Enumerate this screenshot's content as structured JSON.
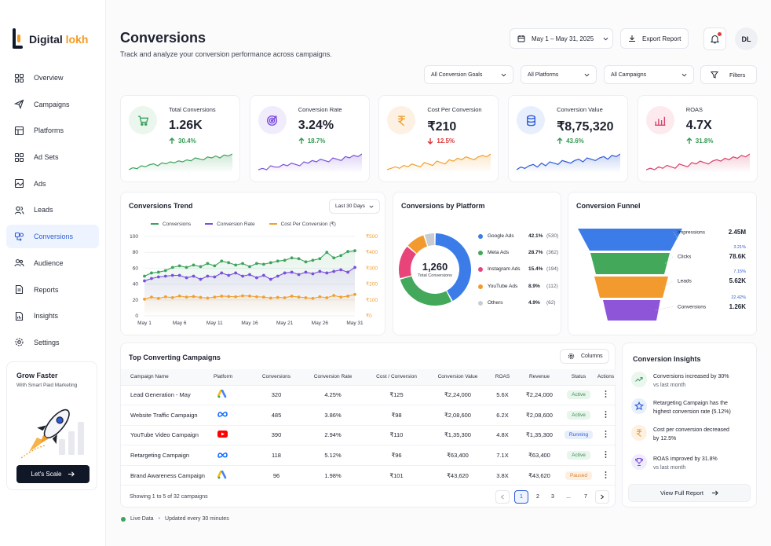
{
  "brand": {
    "name_main": "Digital ",
    "name_accent": "lokh"
  },
  "nav": [
    {
      "label": "Overview",
      "icon": "grid-icon"
    },
    {
      "label": "Campaigns",
      "icon": "send-icon"
    },
    {
      "label": "Platforms",
      "icon": "layout-icon"
    },
    {
      "label": "Ad Sets",
      "icon": "apps-icon"
    },
    {
      "label": "Ads",
      "icon": "image-icon"
    },
    {
      "label": "Leads",
      "icon": "users-icon"
    },
    {
      "label": "Conversions",
      "icon": "conversion-icon"
    },
    {
      "label": "Audience",
      "icon": "audience-icon"
    },
    {
      "label": "Reports",
      "icon": "file-icon"
    },
    {
      "label": "Insights",
      "icon": "insight-file-icon"
    },
    {
      "label": "Settings",
      "icon": "gear-icon"
    }
  ],
  "promo": {
    "title": "Grow Faster",
    "subtitle": "With Smart Paid Marketing",
    "button": "Let's Scale"
  },
  "header": {
    "title": "Conversions",
    "subtitle": "Track and analyze your conversion performance across campaigns.",
    "date_range": "May 1 – May 31, 2025",
    "export": "Export Report",
    "avatar": "DL"
  },
  "filters": {
    "goals": "All Conversion Goals",
    "platforms": "All Platforms",
    "campaigns": "All Campaigns",
    "button": "Filters"
  },
  "kpis": [
    {
      "label": "Total Conversions",
      "value": "1.26K",
      "change": "30.4%",
      "dir": "up",
      "color": "#3da35d",
      "bg": "#eaf6ee",
      "icon": "cart-icon",
      "spark": [
        10,
        12,
        11,
        14,
        13,
        15,
        16,
        14,
        17,
        16,
        18,
        17,
        19,
        18,
        20,
        19,
        22,
        21,
        20,
        23,
        22,
        24,
        22,
        25,
        24,
        26
      ]
    },
    {
      "label": "Conversion Rate",
      "value": "3.24%",
      "change": "18.7%",
      "dir": "up",
      "color": "#7a4fdc",
      "bg": "#f1ecfc",
      "icon": "target-icon",
      "spark": [
        10,
        11,
        10,
        13,
        12,
        12,
        14,
        13,
        15,
        14,
        13,
        16,
        15,
        17,
        16,
        18,
        17,
        16,
        19,
        18,
        17,
        20,
        19,
        21,
        20,
        22
      ]
    },
    {
      "label": "Cost Per Conversion",
      "value": "₹210",
      "change": "12.5%",
      "dir": "down",
      "color": "#f0a030",
      "bg": "#fdf1e3",
      "icon": "rupee-icon",
      "spark": [
        10,
        11,
        12,
        11,
        13,
        12,
        14,
        13,
        12,
        15,
        14,
        13,
        16,
        15,
        14,
        17,
        16,
        18,
        17,
        19,
        18,
        17,
        19,
        20,
        19,
        21
      ]
    },
    {
      "label": "Conversion Value",
      "value": "₹8,75,320",
      "change": "43.6%",
      "dir": "up",
      "color": "#2d5bd7",
      "bg": "#e8effc",
      "icon": "coins-icon",
      "spark": [
        10,
        12,
        11,
        13,
        14,
        12,
        15,
        13,
        16,
        15,
        14,
        17,
        16,
        15,
        17,
        18,
        16,
        19,
        18,
        17,
        19,
        20,
        18,
        21,
        20,
        22
      ]
    },
    {
      "label": "ROAS",
      "value": "4.7X",
      "change": "31.8%",
      "dir": "up",
      "color": "#d93f6a",
      "bg": "#fceaef",
      "icon": "bar-chart-icon",
      "spark": [
        10,
        11,
        10,
        12,
        11,
        13,
        12,
        11,
        14,
        13,
        12,
        15,
        14,
        16,
        15,
        14,
        16,
        17,
        16,
        18,
        17,
        19,
        18,
        20,
        19,
        21
      ]
    }
  ],
  "trend": {
    "title": "Conversions Trend",
    "range": "Last 30 Days",
    "legend": [
      "Conversions",
      "Conversion Rate",
      "Cost Per Conversion (₹)"
    ]
  },
  "chart_data": [
    {
      "type": "line",
      "x": [
        "May 1",
        "May 2",
        "May 3",
        "May 4",
        "May 5",
        "May 6",
        "May 7",
        "May 8",
        "May 9",
        "May 10",
        "May 11",
        "May 12",
        "May 13",
        "May 14",
        "May 15",
        "May 16",
        "May 17",
        "May 18",
        "May 19",
        "May 20",
        "May 21",
        "May 22",
        "May 23",
        "May 24",
        "May 25",
        "May 26",
        "May 27",
        "May 28",
        "May 29",
        "May 30",
        "May 31"
      ],
      "x_ticks": [
        "May 1",
        "May 6",
        "May 11",
        "May 16",
        "May 21",
        "May 26",
        "May 31"
      ],
      "y_left_ticks": [
        "0",
        "20",
        "40",
        "60",
        "80",
        "100"
      ],
      "y_right_ticks": [
        "₹0",
        "₹100",
        "₹200",
        "₹300",
        "₹400",
        "₹500"
      ],
      "ylim": [
        0,
        100
      ],
      "y2lim": [
        0,
        500
      ],
      "series": [
        {
          "name": "Conversions",
          "color": "#3da35d",
          "axis": "left",
          "values": [
            50,
            54,
            55,
            57,
            61,
            63,
            61,
            64,
            62,
            66,
            63,
            69,
            67,
            64,
            66,
            62,
            66,
            65,
            67,
            69,
            70,
            73,
            72,
            68,
            70,
            72,
            80,
            73,
            76,
            81,
            82
          ]
        },
        {
          "name": "Conversion Rate",
          "color": "#7a4fdc",
          "axis": "left",
          "values": [
            44,
            47,
            49,
            50,
            51,
            51,
            48,
            50,
            46,
            50,
            49,
            54,
            51,
            54,
            50,
            52,
            48,
            51,
            46,
            50,
            54,
            55,
            52,
            55,
            53,
            56,
            54,
            56,
            58,
            55,
            61
          ]
        },
        {
          "name": "Cost Per Conversion (₹)",
          "color": "#f0a030",
          "axis": "right",
          "values": [
            105,
            118,
            110,
            120,
            115,
            125,
            118,
            122,
            116,
            112,
            118,
            124,
            122,
            120,
            126,
            125,
            120,
            118,
            112,
            116,
            114,
            124,
            118,
            114,
            110,
            120,
            114,
            128,
            118,
            124,
            135
          ]
        }
      ]
    },
    {
      "type": "pie",
      "title": "Conversions by Platform",
      "center_value": "1,260",
      "center_label": "Total Conversions",
      "slices": [
        {
          "name": "Google Ads",
          "pct": "42.1%",
          "count": "(530)",
          "value": 42.1,
          "color": "#3b7ce8"
        },
        {
          "name": "Meta Ads",
          "pct": "28.7%",
          "count": "(362)",
          "value": 28.7,
          "color": "#43a85a"
        },
        {
          "name": "Instagram Ads",
          "pct": "15.4%",
          "count": "(194)",
          "value": 15.4,
          "color": "#e8447a"
        },
        {
          "name": "YouTube Ads",
          "pct": "8.9%",
          "count": "(112)",
          "value": 8.9,
          "color": "#f29a2e"
        },
        {
          "name": "Others",
          "pct": "4.9%",
          "count": "(62)",
          "value": 4.9,
          "color": "#c8ccd3"
        }
      ]
    }
  ],
  "funnel": {
    "title": "Conversion Funnel",
    "stages": [
      {
        "label": "Impressions",
        "value": "2.45M",
        "color": "#3b7ce8"
      },
      {
        "label": "Clicks",
        "value": "78.6K",
        "rate": "3.21%",
        "color": "#43a85a"
      },
      {
        "label": "Leads",
        "value": "5.62K",
        "rate": "7.15%",
        "color": "#f29a2e"
      },
      {
        "label": "Conversions",
        "value": "1.26K",
        "rate": "22.42%",
        "color": "#8e55d9"
      }
    ]
  },
  "campaigns": {
    "title": "Top Converting Campaigns",
    "columns_btn": "Columns",
    "headers": [
      "Campaign Name",
      "Platform",
      "Conversions",
      "Conversion Rate",
      "Cost / Conversion",
      "Conversion Value",
      "ROAS",
      "Revenue",
      "Status",
      "Actions"
    ],
    "rows": [
      {
        "name": "Lead Generation - May",
        "platform": "google-ads-icon",
        "conversions": "320",
        "rate": "4.25%",
        "cost": "₹125",
        "value": "₹2,24,000",
        "roas": "5.6X",
        "revenue": "₹2,24,000",
        "status": "Active",
        "status_color": "#3a8f52",
        "status_bg": "#e8f5ec"
      },
      {
        "name": "Website Traffic Campaign",
        "platform": "meta-icon",
        "conversions": "485",
        "rate": "3.86%",
        "cost": "₹98",
        "value": "₹2,08,600",
        "roas": "6.2X",
        "revenue": "₹2,08,600",
        "status": "Active",
        "status_color": "#3a8f52",
        "status_bg": "#e8f5ec"
      },
      {
        "name": "YouTube Video Campaign",
        "platform": "youtube-icon",
        "conversions": "390",
        "rate": "2.94%",
        "cost": "₹110",
        "value": "₹1,35,300",
        "roas": "4.8X",
        "revenue": "₹1,35,300",
        "status": "Running",
        "status_color": "#2d5bd7",
        "status_bg": "#e8effc"
      },
      {
        "name": "Retargeting Campaign",
        "platform": "meta-icon",
        "conversions": "118",
        "rate": "5.12%",
        "cost": "₹96",
        "value": "₹63,400",
        "roas": "7.1X",
        "revenue": "₹63,400",
        "status": "Active",
        "status_color": "#3a8f52",
        "status_bg": "#e8f5ec"
      },
      {
        "name": "Brand Awareness Campaign",
        "platform": "google-ads-icon",
        "conversions": "96",
        "rate": "1.98%",
        "cost": "₹101",
        "value": "₹43,620",
        "roas": "3.8X",
        "revenue": "₹43,620",
        "status": "Paused",
        "status_color": "#d9822b",
        "status_bg": "#fdf0e2"
      }
    ],
    "footer": "Showing 1 to 5 of 32 campaigns",
    "pages": [
      "1",
      "2",
      "3",
      "...",
      "7"
    ]
  },
  "insights": {
    "title": "Conversion Insights",
    "items": [
      {
        "text": "Conversions increased by 30%",
        "sub": "vs last month",
        "icon": "trend-up-icon",
        "color": "#3da35d",
        "bg": "#eaf6ee"
      },
      {
        "text": "Retargeting Campaign has the",
        "sub": "highest conversion rate (5.12%)",
        "icon": "star-icon",
        "color": "#2d5bd7",
        "bg": "#e8effc"
      },
      {
        "text": "Cost per conversion decreased",
        "sub": "by 12.5%",
        "icon": "rupee-icon",
        "color": "#f0a030",
        "bg": "#fdf1e3"
      },
      {
        "text": "ROAS improved by 31.8%",
        "sub": "vs last month",
        "icon": "trophy-icon",
        "color": "#7a4fdc",
        "bg": "#f1ecfc"
      }
    ],
    "button": "View Full Report"
  },
  "status_bar": {
    "live": "Live Data",
    "updated": "Updated every 30 minutes"
  }
}
